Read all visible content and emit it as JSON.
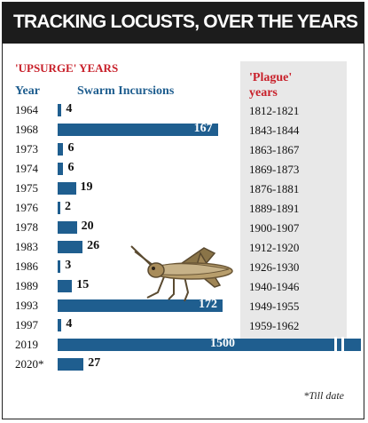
{
  "title": "TRACKING LOCUSTS, OVER THE YEARS",
  "upsurge_title": "'UPSURGE' YEARS",
  "plague_title_line1": "'Plague'",
  "plague_title_line2": "years",
  "footnote": "*Till date",
  "colors": {
    "bar": "#1f5e8f",
    "accent_red": "#c8202a",
    "title_bg": "#1c1c1c",
    "panel_bg": "#e8e8e8"
  },
  "chart_data": {
    "type": "bar",
    "orientation": "horizontal",
    "xlabel": "Swarm Incursions",
    "ylabel": "Year",
    "categories": [
      "1964",
      "1968",
      "1973",
      "1974",
      "1975",
      "1976",
      "1978",
      "1983",
      "1986",
      "1989",
      "1993",
      "1997",
      "2019",
      "2020*"
    ],
    "values": [
      4,
      167,
      6,
      6,
      19,
      2,
      20,
      26,
      3,
      15,
      172,
      4,
      1500,
      27
    ],
    "axis_break": true
  },
  "plague_years": [
    "1812-1821",
    "1843-1844",
    "1863-1867",
    "1869-1873",
    "1876-1881",
    "1889-1891",
    "1900-1907",
    "1912-1920",
    "1926-1930",
    "1940-1946",
    "1949-1955",
    "1959-1962"
  ]
}
